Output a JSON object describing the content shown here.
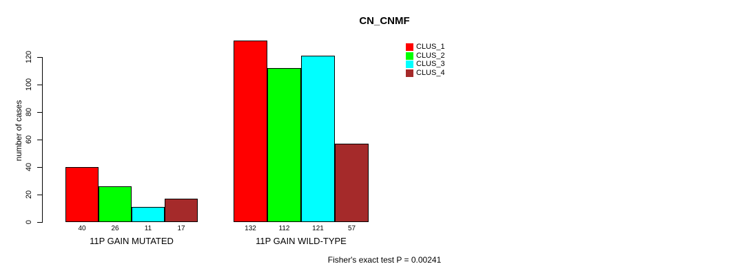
{
  "chart_data": {
    "type": "bar",
    "title": "CN_CNMF",
    "ylabel": "number of cases",
    "xlabel": "",
    "yticks": [
      0,
      20,
      40,
      60,
      80,
      100,
      120
    ],
    "ylim": [
      0,
      132
    ],
    "grid": false,
    "legend_position": "top-right",
    "categories": [
      "11P GAIN MUTATED",
      "11P GAIN WILD-TYPE"
    ],
    "series": [
      {
        "name": "CLUS_1",
        "color": "#FF0000",
        "values": [
          40,
          132
        ]
      },
      {
        "name": "CLUS_2",
        "color": "#00FF00",
        "values": [
          26,
          112
        ]
      },
      {
        "name": "CLUS_3",
        "color": "#00FFFF",
        "values": [
          11,
          121
        ]
      },
      {
        "name": "CLUS_4",
        "color": "#A52A2A",
        "values": [
          17,
          57
        ]
      }
    ],
    "bar_value_labels": [
      [
        40,
        26,
        11,
        17
      ],
      [
        132,
        112,
        121,
        57
      ]
    ],
    "annotation": "Fisher's exact test P = 0.00241"
  },
  "colors": {
    "axis": "#000000",
    "background": "#FFFFFF",
    "bar_border": "#000000"
  }
}
